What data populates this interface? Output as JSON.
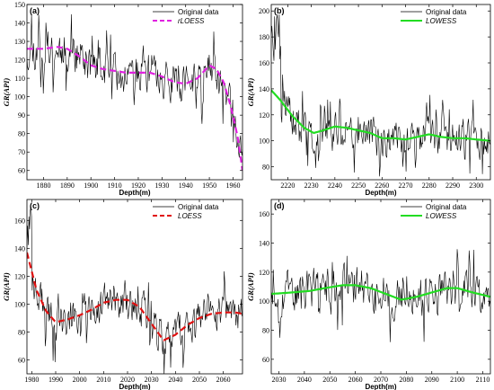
{
  "chart_data": [
    {
      "type": "line",
      "panel_label": "(a)",
      "xlabel": "Depth(m)",
      "ylabel": "GR(API)",
      "xlim": [
        1873,
        1964
      ],
      "ylim": [
        55,
        150
      ],
      "xticks": [
        1880,
        1890,
        1900,
        1910,
        1920,
        1930,
        1940,
        1950,
        1960
      ],
      "yticks": [
        60,
        70,
        80,
        90,
        100,
        110,
        120,
        130,
        140,
        150
      ],
      "legend_position": "top-right",
      "series": [
        {
          "name": "Original data",
          "color": "#000000",
          "style": "solid",
          "x_range": [
            1873,
            1964
          ],
          "seed": 11,
          "noise": 11
        },
        {
          "name": "rLOESS",
          "color": "#e020e0",
          "style": "dashed",
          "x": [
            1873,
            1880,
            1886,
            1890,
            1895,
            1900,
            1905,
            1910,
            1915,
            1920,
            1925,
            1930,
            1935,
            1940,
            1945,
            1950,
            1953,
            1956,
            1959,
            1962,
            1964
          ],
          "y": [
            126,
            126,
            127,
            126,
            122,
            117,
            115,
            114,
            113,
            113,
            113,
            111,
            108,
            107,
            110,
            117,
            115,
            108,
            95,
            78,
            60
          ]
        }
      ]
    },
    {
      "type": "line",
      "panel_label": "(b)",
      "xlabel": "Depth(m)",
      "ylabel": "GR(API)",
      "xlim": [
        2213,
        2306
      ],
      "ylim": [
        70,
        205
      ],
      "xticks": [
        2220,
        2230,
        2240,
        2250,
        2260,
        2270,
        2280,
        2290,
        2300
      ],
      "yticks": [
        80,
        100,
        120,
        140,
        160,
        180,
        200
      ],
      "legend_position": "top-right",
      "series": [
        {
          "name": "Original data",
          "color": "#000000",
          "style": "solid",
          "x_range": [
            2213,
            2306
          ],
          "seed": 23,
          "noise": 14
        },
        {
          "name": "LOWESS",
          "color": "#22dd22",
          "style": "solid",
          "x": [
            2213,
            2217,
            2222,
            2227,
            2231,
            2235,
            2240,
            2245,
            2250,
            2255,
            2260,
            2265,
            2270,
            2275,
            2280,
            2285,
            2290,
            2295,
            2300,
            2306
          ],
          "y": [
            139,
            131,
            119,
            110,
            106,
            108,
            111,
            110,
            108,
            106,
            102,
            102,
            101,
            103,
            105,
            103,
            102,
            102,
            101,
            100
          ]
        }
      ]
    },
    {
      "type": "line",
      "panel_label": "(c)",
      "xlabel": "Depth(m)",
      "ylabel": "GR(API)",
      "xlim": [
        1978,
        2068
      ],
      "ylim": [
        50,
        175
      ],
      "xticks": [
        1980,
        1990,
        2000,
        2010,
        2020,
        2030,
        2040,
        2050,
        2060
      ],
      "yticks": [
        60,
        80,
        100,
        120,
        140,
        160
      ],
      "legend_position": "top-right",
      "series": [
        {
          "name": "Original data",
          "color": "#000000",
          "style": "solid",
          "x_range": [
            1978,
            2068
          ],
          "seed": 37,
          "noise": 13
        },
        {
          "name": "LOESS",
          "color": "#e01010",
          "style": "dashed",
          "x": [
            1978,
            1982,
            1986,
            1990,
            1995,
            2000,
            2005,
            2010,
            2015,
            2020,
            2025,
            2030,
            2035,
            2040,
            2045,
            2050,
            2055,
            2060,
            2065,
            2068
          ],
          "y": [
            137,
            110,
            95,
            87,
            89,
            92,
            96,
            101,
            103,
            103,
            98,
            86,
            74,
            78,
            85,
            90,
            93,
            94,
            94,
            93
          ]
        }
      ]
    },
    {
      "type": "line",
      "panel_label": "(d)",
      "xlabel": "Depth(m)",
      "ylabel": "GR(API)",
      "xlim": [
        2027,
        2113
      ],
      "ylim": [
        50,
        170
      ],
      "xticks": [
        2030,
        2040,
        2050,
        2060,
        2070,
        2080,
        2090,
        2100,
        2110
      ],
      "yticks": [
        60,
        80,
        100,
        120,
        140,
        160
      ],
      "legend_position": "top-right",
      "series": [
        {
          "name": "Original data",
          "color": "#000000",
          "style": "solid",
          "x_range": [
            2027,
            2113
          ],
          "seed": 53,
          "noise": 14
        },
        {
          "name": "LOWESS",
          "color": "#22dd22",
          "style": "solid",
          "x": [
            2027,
            2035,
            2042,
            2048,
            2055,
            2060,
            2066,
            2072,
            2078,
            2084,
            2090,
            2096,
            2100,
            2106,
            2113
          ],
          "y": [
            105,
            106,
            107,
            109,
            111,
            111,
            109,
            105,
            101,
            103,
            106,
            109,
            109,
            106,
            103
          ]
        }
      ]
    }
  ]
}
